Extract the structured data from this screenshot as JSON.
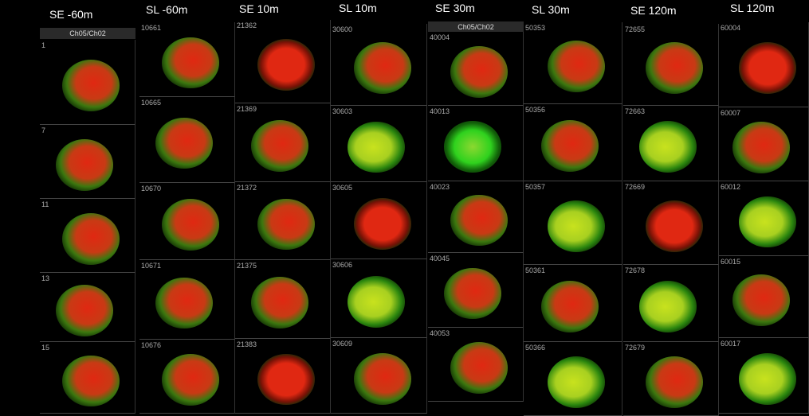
{
  "colors": {
    "red": "#e02812",
    "green": "#2fd21e",
    "yellow": "#c8e21e",
    "background": "#000000"
  },
  "channel_label": "Ch05/Ch02",
  "columns": [
    {
      "title": "SE -60m",
      "header": true,
      "cells": [
        {
          "id": "1",
          "type": "mixed"
        },
        {
          "id": "7",
          "type": "mixed"
        },
        {
          "id": "11",
          "type": "mixed"
        },
        {
          "id": "13",
          "type": "mixed"
        },
        {
          "id": "15",
          "type": "mixed"
        }
      ]
    },
    {
      "title": "SL -60m",
      "cells": [
        {
          "id": "10661",
          "type": "mixed"
        },
        {
          "id": "10665",
          "type": "mixed"
        },
        {
          "id": "10670",
          "type": "mixed"
        },
        {
          "id": "10671",
          "type": "mixed"
        },
        {
          "id": "10676",
          "type": "mixed"
        }
      ]
    },
    {
      "title": "SE 10m",
      "cells": [
        {
          "id": "21362",
          "type": "red"
        },
        {
          "id": "21369",
          "type": "mixed"
        },
        {
          "id": "21372",
          "type": "mixed"
        },
        {
          "id": "21375",
          "type": "mixed"
        },
        {
          "id": "21383",
          "type": "red"
        }
      ]
    },
    {
      "title": "SL 10m",
      "cells": [
        {
          "id": "30600",
          "type": "mixed"
        },
        {
          "id": "30603",
          "type": "yellow"
        },
        {
          "id": "30605",
          "type": "red"
        },
        {
          "id": "30606",
          "type": "yellow"
        },
        {
          "id": "30609",
          "type": "mixed"
        }
      ]
    },
    {
      "title": "SE 30m",
      "header": true,
      "cells": [
        {
          "id": "40004",
          "type": "mixed"
        },
        {
          "id": "40013",
          "type": "green"
        },
        {
          "id": "40023",
          "type": "mixed"
        },
        {
          "id": "40045",
          "type": "mixed"
        },
        {
          "id": "40053",
          "type": "mixed"
        }
      ]
    },
    {
      "title": "SL 30m",
      "cells": [
        {
          "id": "50353",
          "type": "mixed"
        },
        {
          "id": "50356",
          "type": "mixed"
        },
        {
          "id": "50357",
          "type": "yellow"
        },
        {
          "id": "50361",
          "type": "mixed"
        },
        {
          "id": "50366",
          "type": "yellow"
        }
      ]
    },
    {
      "title": "SE 120m",
      "cells": [
        {
          "id": "72655",
          "type": "mixed"
        },
        {
          "id": "72663",
          "type": "yellow"
        },
        {
          "id": "72669",
          "type": "red"
        },
        {
          "id": "72678",
          "type": "yellow"
        },
        {
          "id": "72679",
          "type": "mixed"
        }
      ]
    },
    {
      "title": "SL 120m",
      "cells": [
        {
          "id": "60004",
          "type": "red"
        },
        {
          "id": "60007",
          "type": "mixed"
        },
        {
          "id": "60012",
          "type": "yellow"
        },
        {
          "id": "60015",
          "type": "mixed"
        },
        {
          "id": "60017",
          "type": "yellow"
        }
      ]
    }
  ]
}
